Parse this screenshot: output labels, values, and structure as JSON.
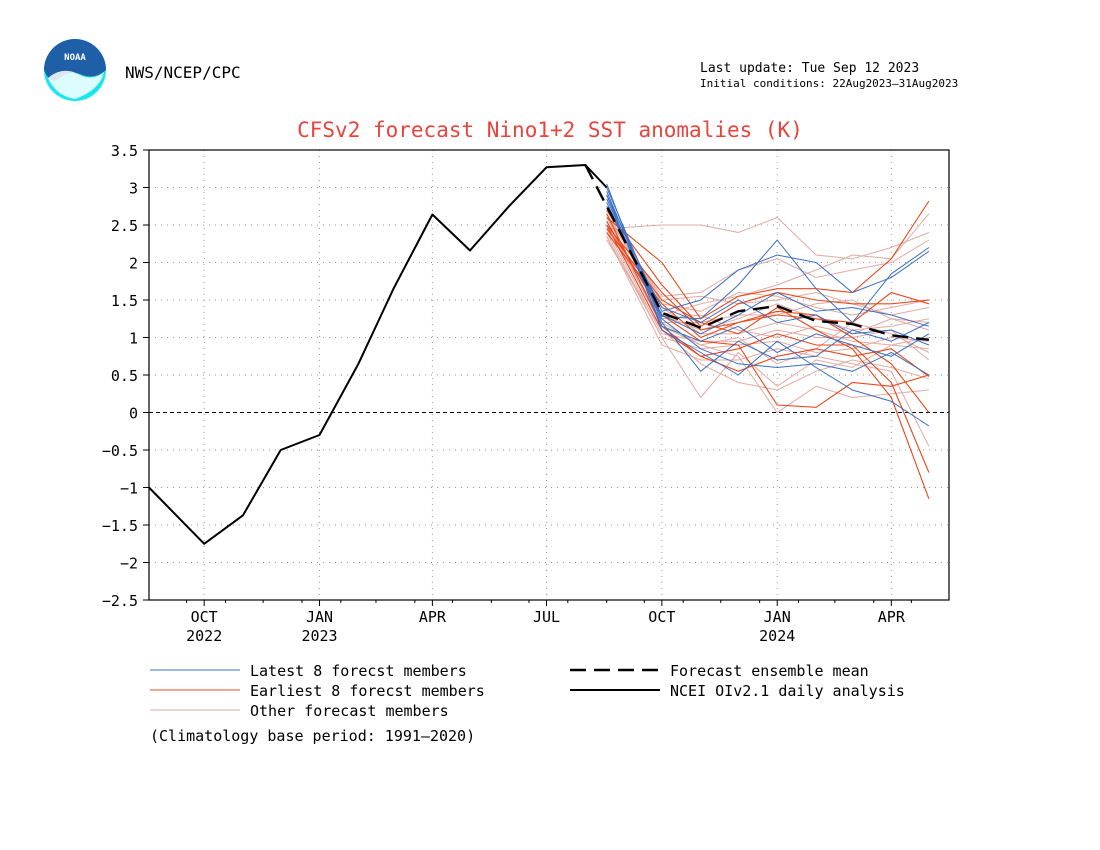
{
  "header": {
    "org": "NWS/NCEP/CPC",
    "logo_text": "NOAA",
    "last_update": "Last update: Tue Sep 12 2023",
    "initial_conditions": "Initial conditions: 22Aug2023–31Aug2023"
  },
  "colors": {
    "title": "#e8443c",
    "latest": "#3a6fc4",
    "earliest": "#e8481c",
    "other": "#e2aaa2",
    "observed": "#000000",
    "logo_blue": "#1f5fa8",
    "logo_cyan": "#19e6ef"
  },
  "chart_data": {
    "type": "line",
    "title": "CFSv2 forecast Nino1+2 SST anomalies (K)",
    "ylim": [
      -2.5,
      3.5
    ],
    "y_ticks": [
      3.5,
      3,
      2.5,
      2,
      1.5,
      1,
      0.5,
      0,
      -0.5,
      -1,
      -1.5,
      -2,
      -2.5
    ],
    "y_tick_labels": [
      "3.5",
      "3",
      "2.5",
      "2",
      "1.5",
      "1",
      "0.5",
      "0",
      "−0.5",
      "−1",
      "−1.5",
      "−2",
      "−2.5"
    ],
    "xlim": [
      "2022-09-01",
      "2024-05-31"
    ],
    "x_ticks": [
      {
        "date": "2022-10-15",
        "label": "OCT",
        "year": "2022"
      },
      {
        "date": "2023-01-15",
        "label": "JAN",
        "year": "2023"
      },
      {
        "date": "2023-04-15",
        "label": "APR",
        "year": ""
      },
      {
        "date": "2023-07-15",
        "label": "JUL",
        "year": ""
      },
      {
        "date": "2023-10-15",
        "label": "OCT",
        "year": ""
      },
      {
        "date": "2024-01-15",
        "label": "JAN",
        "year": "2024"
      },
      {
        "date": "2024-04-15",
        "label": "APR",
        "year": ""
      }
    ],
    "grid": true,
    "zero_line": true,
    "legend": {
      "placement": "bottom",
      "entries": [
        {
          "label": "Latest 8 forecst members",
          "style": "latest"
        },
        {
          "label": "Earliest 8 forecst members",
          "style": "earliest"
        },
        {
          "label": "Other forecast members",
          "style": "other"
        },
        {
          "label": "Forecast ensemble mean",
          "style": "mean"
        },
        {
          "label": "NCEI OIv2.1 daily analysis",
          "style": "observed"
        }
      ]
    },
    "note": "(Climatology base period: 1991–2020)",
    "forecast_x": [
      "2023-09-01",
      "2023-10-15",
      "2023-11-15",
      "2023-12-15",
      "2024-01-15",
      "2024-02-15",
      "2024-03-15",
      "2024-04-15",
      "2024-05-15"
    ],
    "observed": {
      "name": "NCEI OIv2.1 daily analysis",
      "x": [
        "2022-09-01",
        "2022-10-15",
        "2022-11-15",
        "2022-12-15",
        "2023-01-15",
        "2023-02-15",
        "2023-03-15",
        "2023-04-15",
        "2023-05-15",
        "2023-06-15",
        "2023-07-15",
        "2023-08-15",
        "2023-09-01"
      ],
      "values": [
        -1.0,
        -1.75,
        -1.37,
        -0.5,
        -0.3,
        0.65,
        1.65,
        2.64,
        2.16,
        2.75,
        3.27,
        3.3,
        3.0
      ]
    },
    "ensemble_mean": {
      "name": "Forecast ensemble mean",
      "x": [
        "2023-08-15",
        "2023-10-15",
        "2023-11-15",
        "2023-12-15",
        "2024-01-15",
        "2024-02-15",
        "2024-03-15",
        "2024-04-15",
        "2024-05-15"
      ],
      "values": [
        3.3,
        1.33,
        1.13,
        1.35,
        1.42,
        1.22,
        1.18,
        1.03,
        0.97
      ]
    },
    "members": {
      "latest": [
        [
          3.0,
          1.28,
          1.25,
          1.7,
          2.3,
          1.65,
          1.2,
          1.85,
          2.2
        ],
        [
          2.9,
          1.35,
          1.5,
          1.9,
          2.1,
          2.0,
          1.6,
          1.8,
          2.15
        ],
        [
          2.95,
          1.2,
          0.55,
          0.95,
          0.7,
          0.75,
          1.1,
          0.95,
          1.2
        ],
        [
          2.85,
          1.25,
          0.85,
          0.65,
          0.6,
          0.65,
          0.55,
          0.8,
          0.5
        ],
        [
          3.05,
          1.1,
          0.8,
          0.5,
          0.95,
          0.6,
          0.3,
          0.15,
          -0.18
        ],
        [
          2.8,
          1.3,
          1.05,
          1.3,
          1.6,
          1.35,
          1.4,
          1.3,
          1.15
        ],
        [
          2.9,
          1.15,
          0.95,
          1.15,
          0.8,
          1.05,
          0.9,
          0.75,
          1.05
        ],
        [
          2.75,
          1.4,
          1.2,
          1.5,
          1.2,
          1.3,
          1.05,
          1.1,
          0.9
        ]
      ],
      "earliest": [
        [
          2.6,
          2.0,
          1.25,
          1.55,
          1.65,
          1.65,
          1.6,
          2.05,
          2.82
        ],
        [
          2.7,
          1.7,
          1.15,
          1.45,
          1.6,
          1.5,
          1.45,
          1.45,
          1.5
        ],
        [
          2.5,
          1.6,
          1.1,
          1.2,
          1.3,
          1.25,
          1.2,
          1.6,
          1.45
        ],
        [
          2.55,
          1.3,
          0.95,
          0.9,
          0.1,
          0.07,
          0.4,
          0.35,
          0.5
        ],
        [
          2.45,
          1.5,
          1.2,
          1.05,
          1.4,
          1.1,
          0.85,
          0.2,
          -1.15
        ],
        [
          2.65,
          1.15,
          0.75,
          0.55,
          0.75,
          0.85,
          0.75,
          0.85,
          0.48
        ],
        [
          2.4,
          1.45,
          1.0,
          1.2,
          1.35,
          1.3,
          1.0,
          0.65,
          0.0
        ],
        [
          2.5,
          1.1,
          0.75,
          0.85,
          1.05,
          0.9,
          0.9,
          0.4,
          -0.8
        ]
      ],
      "other": [
        [
          2.45,
          2.5,
          2.5,
          2.4,
          2.6,
          2.1,
          2.05,
          2.2,
          2.4
        ],
        [
          2.35,
          1.0,
          0.2,
          0.8,
          0.35,
          0.7,
          0.6,
          0.9,
          0.85
        ],
        [
          2.6,
          1.55,
          1.6,
          1.9,
          2.05,
          1.8,
          1.9,
          2.0,
          2.3
        ],
        [
          2.55,
          1.15,
          0.9,
          0.75,
          0.0,
          0.35,
          0.2,
          0.25,
          0.3
        ],
        [
          2.7,
          1.3,
          1.45,
          1.55,
          1.7,
          1.9,
          2.1,
          2.05,
          2.65
        ],
        [
          2.3,
          1.1,
          0.65,
          0.4,
          0.3,
          0.55,
          0.7,
          0.6,
          0.45
        ],
        [
          2.5,
          1.25,
          1.3,
          1.1,
          1.0,
          1.15,
          1.05,
          1.25,
          1.1
        ],
        [
          2.65,
          1.4,
          1.05,
          1.05,
          1.2,
          1.1,
          0.95,
          0.9,
          1.0
        ],
        [
          2.4,
          1.0,
          0.85,
          0.9,
          0.95,
          0.8,
          0.85,
          1.0,
          0.95
        ],
        [
          2.55,
          1.2,
          1.2,
          1.3,
          1.3,
          1.45,
          1.5,
          1.25,
          1.2
        ],
        [
          2.75,
          1.45,
          1.35,
          1.6,
          1.55,
          1.4,
          1.3,
          1.4,
          1.5
        ],
        [
          2.35,
          0.9,
          0.7,
          0.7,
          0.85,
          0.75,
          0.65,
          0.55,
          -0.45
        ],
        [
          2.6,
          1.3,
          1.1,
          1.25,
          1.45,
          1.25,
          1.1,
          1.15,
          1.25
        ],
        [
          2.45,
          1.05,
          0.95,
          0.95,
          1.1,
          1.0,
          1.0,
          1.1,
          0.7
        ],
        [
          2.7,
          1.5,
          1.55,
          1.45,
          1.5,
          1.6,
          1.45,
          1.3,
          1.4
        ],
        [
          2.5,
          1.2,
          0.9,
          1.0,
          0.65,
          0.85,
          1.2,
          1.05,
          0.8
        ]
      ]
    }
  }
}
